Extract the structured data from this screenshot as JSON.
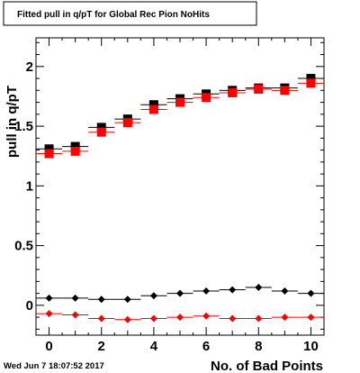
{
  "chart_data": {
    "type": "scatter",
    "title": "Fitted pull in q/pT for Global Rec Pion NoHits",
    "xlabel": "No. of Bad Points",
    "ylabel": "pull in q/pT",
    "timestamp": "Wed Jun  7 18:07:52 2017",
    "xlim": [
      -0.5,
      10.5
    ],
    "ylim": [
      -0.25,
      2.24
    ],
    "x_ticks": [
      0,
      2,
      4,
      6,
      8,
      10
    ],
    "y_ticks": [
      0,
      0.5,
      1,
      1.5,
      2
    ],
    "x_tick_labels": [
      "0",
      "2",
      "4",
      "6",
      "8",
      "10"
    ],
    "y_tick_labels": [
      "0",
      "0.5",
      "1",
      "1.5",
      "2"
    ],
    "grid": false,
    "legend": "none",
    "x": [
      0,
      1,
      2,
      3,
      4,
      5,
      6,
      7,
      8,
      9,
      10
    ],
    "series": [
      {
        "marker": "square",
        "color": "#000000",
        "values": [
          1.31,
          1.33,
          1.49,
          1.56,
          1.68,
          1.73,
          1.77,
          1.8,
          1.82,
          1.82,
          1.9
        ]
      },
      {
        "marker": "square",
        "color": "#ff0000",
        "values": [
          1.27,
          1.29,
          1.45,
          1.53,
          1.64,
          1.7,
          1.74,
          1.78,
          1.81,
          1.8,
          1.86
        ]
      },
      {
        "marker": "diamond",
        "color": "#000000",
        "values": [
          0.06,
          0.06,
          0.05,
          0.05,
          0.08,
          0.1,
          0.12,
          0.13,
          0.15,
          0.12,
          0.1
        ]
      },
      {
        "marker": "diamond",
        "color": "#ff0000",
        "values": [
          -0.07,
          -0.08,
          -0.11,
          -0.12,
          -0.11,
          -0.1,
          -0.09,
          -0.11,
          -0.11,
          -0.1,
          -0.1
        ]
      }
    ]
  }
}
